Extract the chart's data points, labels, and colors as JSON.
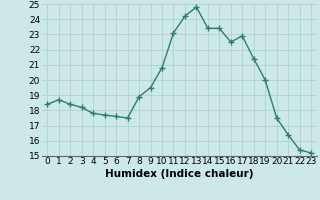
{
  "x": [
    0,
    1,
    2,
    3,
    4,
    5,
    6,
    7,
    8,
    9,
    10,
    11,
    12,
    13,
    14,
    15,
    16,
    17,
    18,
    19,
    20,
    21,
    22,
    23
  ],
  "y": [
    18.4,
    18.7,
    18.4,
    18.2,
    17.8,
    17.7,
    17.6,
    17.5,
    18.9,
    19.5,
    20.8,
    23.1,
    24.2,
    24.8,
    23.4,
    23.4,
    22.5,
    22.9,
    21.4,
    20.0,
    17.5,
    16.4,
    15.4,
    15.2
  ],
  "line_color": "#2e7d6e",
  "marker": "+",
  "marker_size": 4,
  "line_width": 1.0,
  "xlabel": "Humidex (Indice chaleur)",
  "xlim": [
    -0.5,
    23.5
  ],
  "ylim": [
    15,
    25
  ],
  "yticks": [
    15,
    16,
    17,
    18,
    19,
    20,
    21,
    22,
    23,
    24,
    25
  ],
  "xticks": [
    0,
    1,
    2,
    3,
    4,
    5,
    6,
    7,
    8,
    9,
    10,
    11,
    12,
    13,
    14,
    15,
    16,
    17,
    18,
    19,
    20,
    21,
    22,
    23
  ],
  "bg_color": "#cce8e8",
  "grid_color": "#aacece",
  "xlabel_fontsize": 7.5,
  "tick_fontsize": 6.5
}
